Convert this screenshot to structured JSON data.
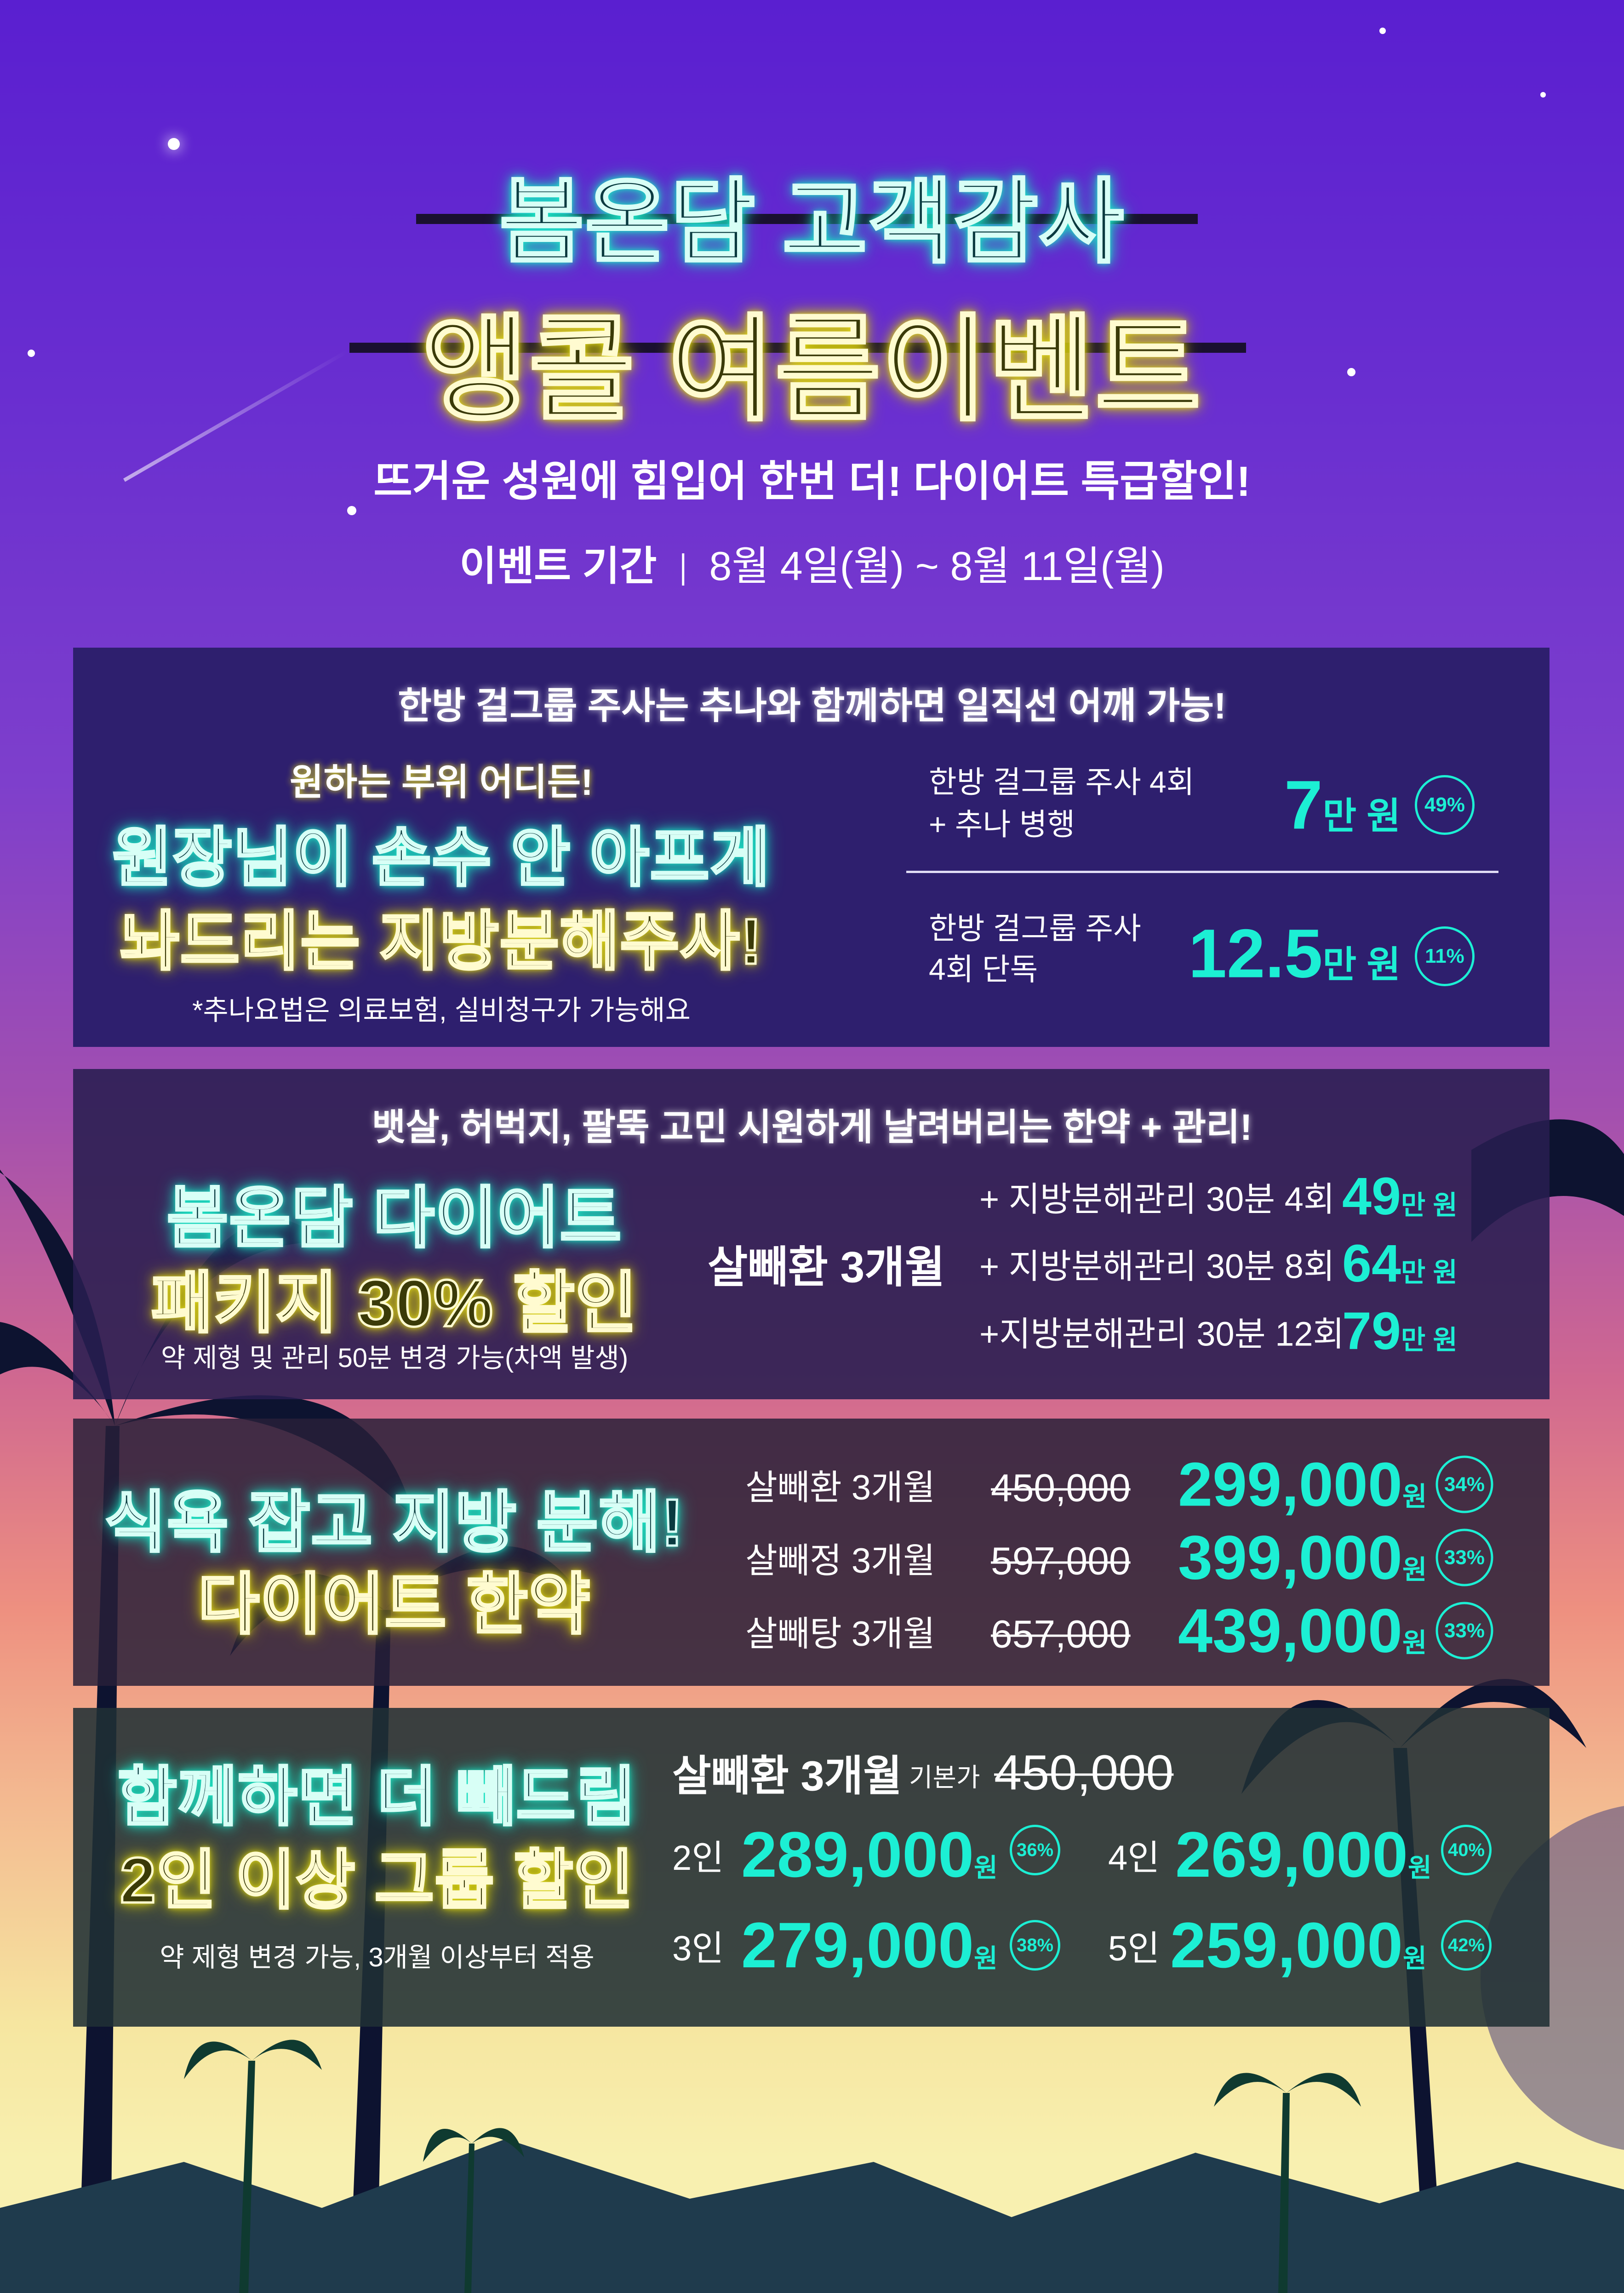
{
  "header": {
    "title_line1": "봄온담 고객감사",
    "title_line2": "앵콜 여름이벤트",
    "subtitle": "뜨거운 성원에 힘입어 한번 더! 다이어트 특급할인!",
    "period_label": "이벤트 기간",
    "period_value": "8월 4일(월) ~ 8월 11일(월)"
  },
  "section1": {
    "heading": "한방 걸그룹 주사는 추나와 함께하면 일직선 어깨 가능!",
    "kicker": "원하는 부위 어디든!",
    "neon_line1": "원장님이 손수 안 아프게",
    "neon_line2": "놔드리는 지방분해주사!",
    "note": "*추나요법은 의료보험, 실비청구가 가능해요",
    "offers": [
      {
        "line1": "한방 걸그룹 주사 4회",
        "line2": "+ 추나 병행",
        "price": "7",
        "unit": "만 원",
        "discount": "49%"
      },
      {
        "line1": "한방 걸그룹 주사",
        "line2": "4회 단독",
        "price": "12.5",
        "unit": "만 원",
        "discount": "11%"
      }
    ]
  },
  "section2": {
    "heading": "뱃살, 허벅지, 팔뚝 고민 시원하게 날려버리는 한약 + 관리!",
    "neon_line1": "봄온담 다이어트",
    "neon_line2": "패키지 30% 할인",
    "note": "약 제형 및 관리 50분 변경 가능(차액 발생)",
    "product": "살빼환 3개월",
    "options": [
      {
        "label": "+ 지방분해관리 30분 4회",
        "price": "49",
        "unit": "만 원"
      },
      {
        "label": "+ 지방분해관리 30분 8회",
        "price": "64",
        "unit": "만 원"
      },
      {
        "label": "+지방분해관리 30분 12회",
        "price": "79",
        "unit": "만 원"
      }
    ]
  },
  "section3": {
    "neon_line1": "식욕 잡고 지방 분해!",
    "neon_line2": "다이어트 한약",
    "items": [
      {
        "name": "살빼환 3개월",
        "original": "450,000",
        "price": "299,000",
        "unit": "원",
        "discount": "34%"
      },
      {
        "name": "살빼정 3개월",
        "original": "597,000",
        "price": "399,000",
        "unit": "원",
        "discount": "33%"
      },
      {
        "name": "살빼탕 3개월",
        "original": "657,000",
        "price": "439,000",
        "unit": "원",
        "discount": "33%"
      }
    ]
  },
  "section4": {
    "neon_line1": "함께하면 더 빼드림",
    "neon_line2": "2인 이상 그룹 할인",
    "note": "약 제형 변경 가능, 3개월 이상부터 적용",
    "product": "살빼환 3개월",
    "base_label": "기본가",
    "base_price": "450,000",
    "groups": [
      {
        "people": "2인",
        "price": "289,000",
        "unit": "원",
        "discount": "36%"
      },
      {
        "people": "3인",
        "price": "279,000",
        "unit": "원",
        "discount": "38%"
      },
      {
        "people": "4인",
        "price": "269,000",
        "unit": "원",
        "discount": "40%"
      },
      {
        "people": "5인",
        "price": "259,000",
        "unit": "원",
        "discount": "42%"
      }
    ]
  },
  "colors": {
    "accent": "#1cefd4",
    "neon_yellow": "#e8e020",
    "box1": "#2e1f6e",
    "box2": "#2c2452",
    "box3": "#3a2f40",
    "box4": "#2d3a3c"
  }
}
